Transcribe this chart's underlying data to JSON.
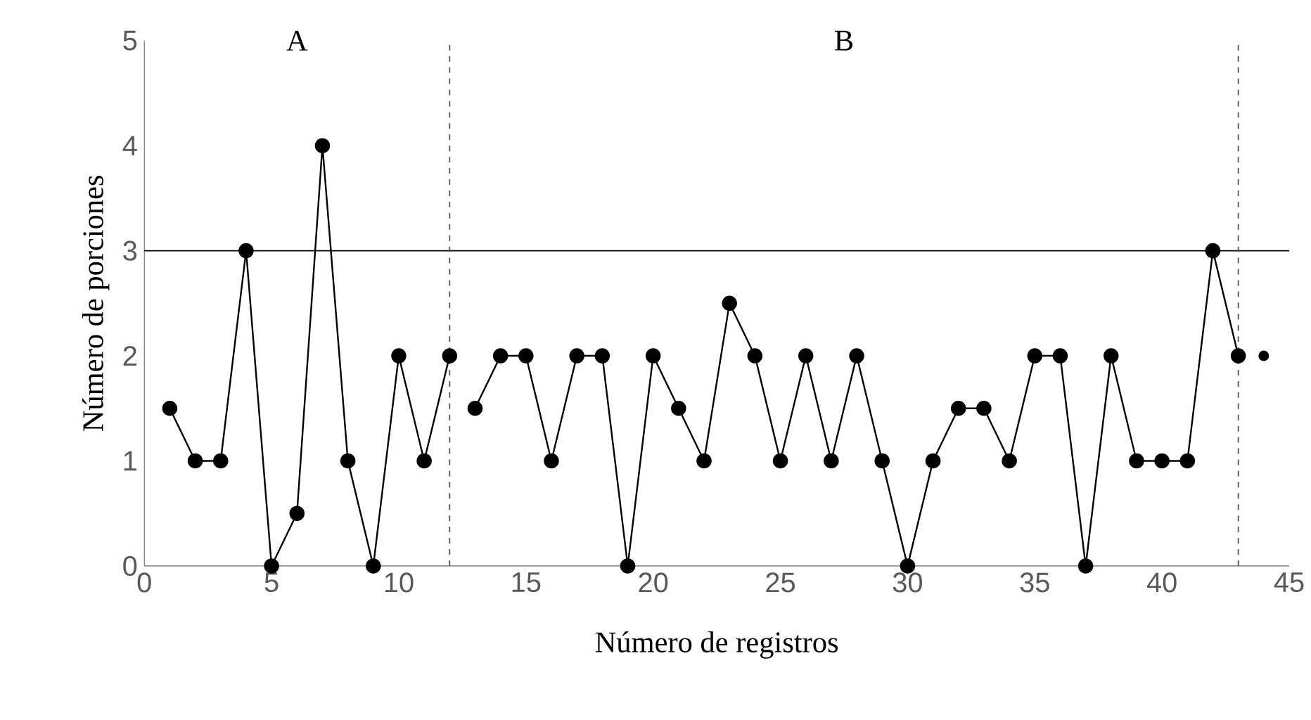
{
  "chart_data": {
    "type": "line",
    "xlabel": "Número de registros",
    "ylabel": "Número de porciones",
    "xlim": [
      0,
      45
    ],
    "xticks": [
      0,
      5,
      10,
      15,
      20,
      25,
      30,
      35,
      40,
      45
    ],
    "ylim": [
      0,
      5
    ],
    "yticks": [
      0,
      1,
      2,
      3,
      4,
      5
    ],
    "marker": "circle",
    "line_style": "solid",
    "series": [
      {
        "color": "#000000",
        "x": [
          1,
          2,
          3,
          4,
          5,
          6,
          7,
          8,
          9,
          10,
          11,
          12
        ],
        "values": [
          1.5,
          1,
          1,
          3,
          0,
          0.5,
          4,
          1,
          0,
          2,
          1,
          2
        ]
      },
      {
        "color": "#000000",
        "x": [
          13,
          14,
          15,
          16,
          17,
          18,
          19,
          20,
          21,
          22,
          23,
          24,
          25,
          26,
          27,
          28,
          29,
          30,
          31,
          32,
          33,
          34,
          35,
          36,
          37,
          38,
          39,
          40,
          41,
          42,
          43
        ],
        "values": [
          1.5,
          2,
          2,
          1,
          2,
          2,
          0,
          2,
          1.5,
          1,
          2.5,
          2,
          1,
          2,
          1,
          2,
          1,
          0,
          1,
          1.5,
          1.5,
          1,
          2,
          2,
          0,
          2,
          1,
          1,
          1,
          3,
          2
        ]
      },
      {
        "type": "scatter",
        "color": "#000000",
        "x": [
          44
        ],
        "values": [
          2
        ]
      }
    ],
    "ref_lines": [
      {
        "axis": "y",
        "value": 3,
        "color": "#000000",
        "line_style": "solid"
      },
      {
        "axis": "x",
        "value": 12,
        "color": "#595959",
        "line_style": "dashed"
      },
      {
        "axis": "x",
        "value": 43,
        "color": "#595959",
        "line_style": "dashed"
      }
    ],
    "annotations": [
      "A",
      "B"
    ]
  }
}
